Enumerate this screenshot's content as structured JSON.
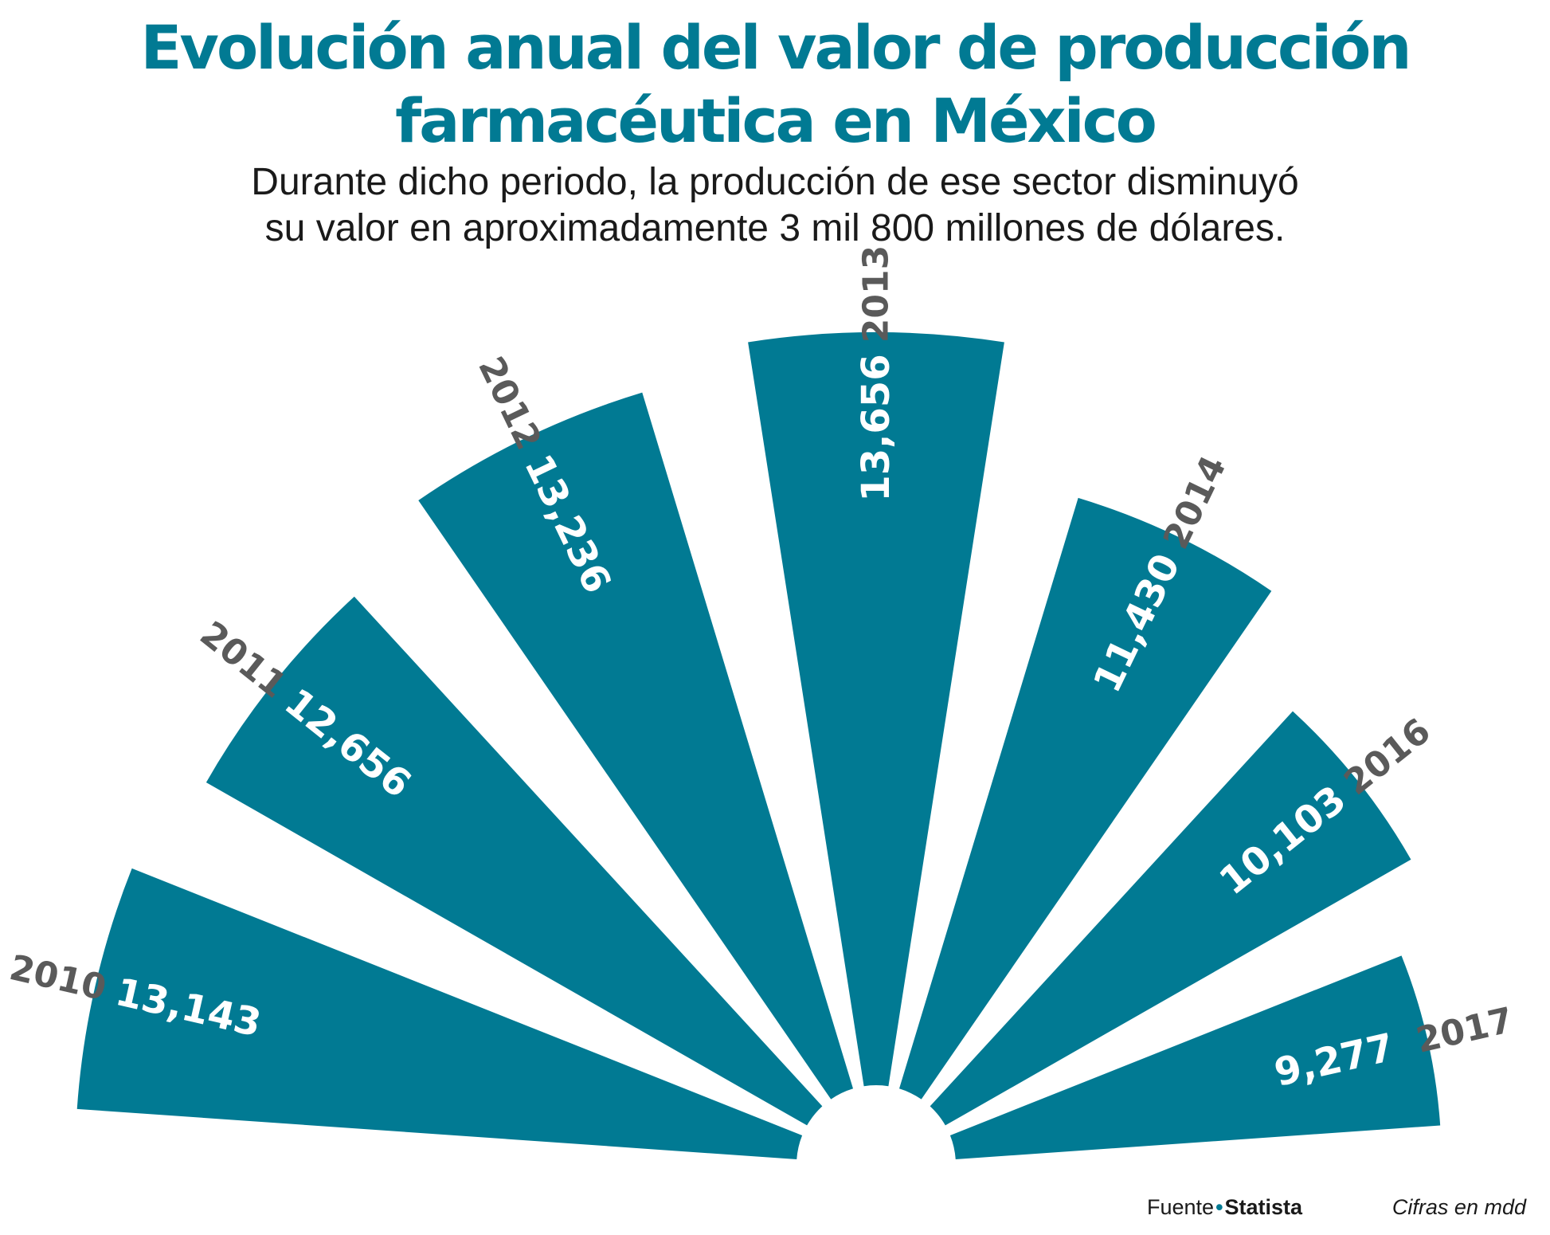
{
  "title": {
    "line1": "Evolución anual del valor de producción",
    "line2": "farmacéutica en México"
  },
  "subtitle": {
    "line1": "Durante dicho periodo, la producción de ese sector disminuyó",
    "line2": "su valor en aproximadamente 3 mil 800 millones de dólares."
  },
  "colors": {
    "accent": "#017a93",
    "year_label": "#5a5a5a",
    "value_label": "#ffffff",
    "text": "#1a1a1a"
  },
  "footer": {
    "source_label": "Fuente",
    "source_bullet": "•",
    "source_name": "Statista",
    "units": "Cifras en mdd"
  },
  "chart_data": {
    "type": "bar",
    "subtype": "radial fan (semicircle, one wedge per year)",
    "title": "Evolución anual del valor de producción farmacéutica en México",
    "categories": [
      "2010",
      "2011",
      "2012",
      "2013",
      "2014",
      "2016",
      "2017"
    ],
    "values": [
      13143,
      12656,
      13236,
      13656,
      11430,
      10103,
      9277
    ],
    "value_labels": [
      "13,143",
      "12,656",
      "13,236",
      "13,656",
      "11,430",
      "10,103",
      "9,277"
    ],
    "units": "millones de dólares (mdd)",
    "ylim": [
      0,
      13656
    ]
  }
}
